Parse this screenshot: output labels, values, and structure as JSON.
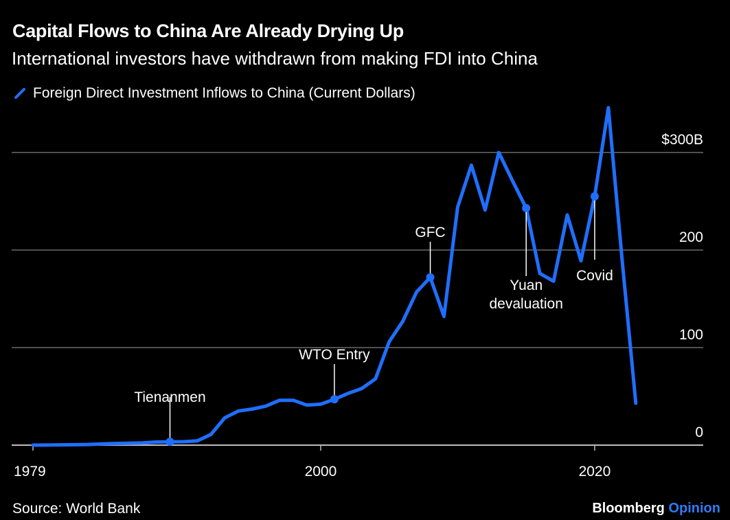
{
  "chart_data": {
    "type": "line",
    "title": "Capital Flows to China Are Already Drying Up",
    "subtitle": "International investors have withdrawn from making FDI into China",
    "legend": [
      {
        "name": "Foreign Direct Investment Inflows to China (Current Dollars)",
        "color": "#1f6fff"
      }
    ],
    "legend_placement": "top-left",
    "xlabel": "",
    "ylabel": "",
    "x_ticks": [
      {
        "value": 1979,
        "label": "1979"
      },
      {
        "value": 2000,
        "label": "2000"
      },
      {
        "value": 2020,
        "label": "2020"
      }
    ],
    "y_ticks": [
      {
        "value": 0,
        "label": "0"
      },
      {
        "value": 100,
        "label": "100"
      },
      {
        "value": 200,
        "label": "200"
      },
      {
        "value": 300,
        "label": "$300B"
      }
    ],
    "xlim": [
      1979,
      2023
    ],
    "ylim": [
      0,
      346
    ],
    "grid": true,
    "series": [
      {
        "name": "Foreign Direct Investment Inflows to China (Current Dollars)",
        "color": "#1f6fff",
        "x": [
          1979,
          1980,
          1981,
          1982,
          1983,
          1984,
          1985,
          1986,
          1987,
          1988,
          1989,
          1990,
          1991,
          1992,
          1993,
          1994,
          1995,
          1996,
          1997,
          1998,
          1999,
          2000,
          2001,
          2002,
          2003,
          2004,
          2005,
          2006,
          2007,
          2008,
          2009,
          2010,
          2011,
          2012,
          2013,
          2014,
          2015,
          2016,
          2017,
          2018,
          2019,
          2020,
          2021,
          2022,
          2023
        ],
        "values": [
          0,
          0.1,
          0.3,
          0.4,
          0.6,
          1.3,
          1.7,
          1.9,
          2.3,
          3.2,
          3.4,
          3.5,
          4.4,
          11,
          28,
          35,
          37,
          40,
          46,
          46,
          41,
          42,
          47,
          53,
          58,
          68,
          106,
          127,
          157,
          172,
          132,
          244,
          287,
          241,
          300,
          271,
          243,
          176,
          168,
          236,
          189,
          255,
          346,
          190,
          43
        ]
      }
    ],
    "annotations": [
      {
        "x": 1989,
        "label": "Tienanmen"
      },
      {
        "x": 2001,
        "label": "WTO Entry"
      },
      {
        "x": 2008,
        "label": "GFC"
      },
      {
        "x": 2015,
        "label": "Yuan devaluation",
        "lines": [
          "Yuan",
          "devaluation"
        ]
      },
      {
        "x": 2020,
        "label": "Covid"
      }
    ]
  },
  "footer": {
    "source": "Source: World Bank",
    "brand_main": "Bloomberg",
    "brand_accent": "Opinion"
  }
}
